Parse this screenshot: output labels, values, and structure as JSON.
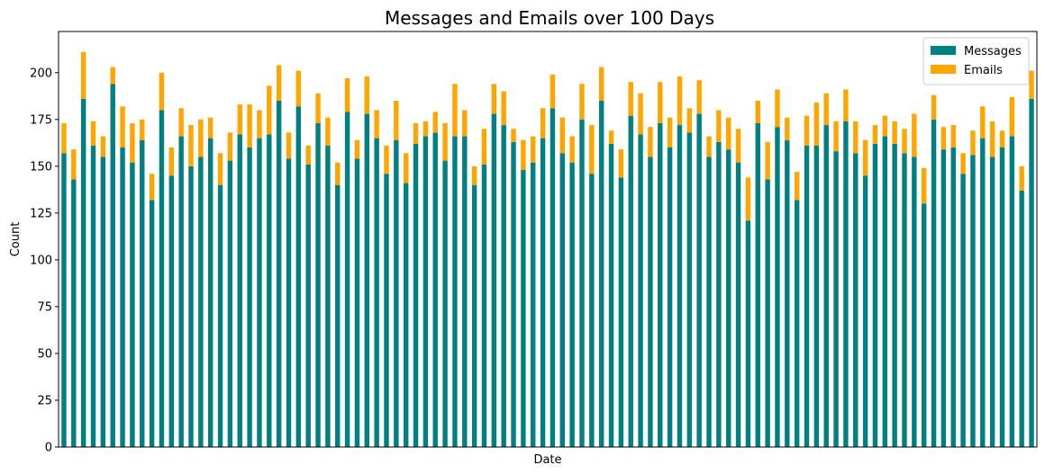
{
  "chart_data": {
    "type": "bar",
    "stacked": true,
    "title": "Messages and Emails over 100 Days",
    "xlabel": "Date",
    "ylabel": "Count",
    "ylim": [
      0,
      222
    ],
    "yticks": [
      0,
      25,
      50,
      75,
      100,
      125,
      150,
      175,
      200
    ],
    "grid": false,
    "legend_position": "top-right",
    "x_tick_labels_visible": false,
    "series": [
      {
        "name": "Messages",
        "color": "#008080",
        "values": [
          157,
          143,
          186,
          161,
          155,
          194,
          160,
          152,
          164,
          132,
          180,
          145,
          166,
          150,
          155,
          165,
          140,
          153,
          167,
          160,
          165,
          167,
          185,
          154,
          182,
          151,
          173,
          161,
          140,
          179,
          154,
          178,
          165,
          146,
          164,
          141,
          162,
          166,
          168,
          153,
          166,
          166,
          140,
          151,
          178,
          172,
          163,
          148,
          152,
          165,
          181,
          157,
          152,
          175,
          146,
          185,
          162,
          144,
          177,
          167,
          155,
          173,
          160,
          172,
          168,
          178,
          155,
          163,
          159,
          152,
          121,
          173,
          143,
          171,
          164,
          132,
          161,
          161,
          172,
          158,
          174,
          157,
          145,
          162,
          166,
          162,
          157,
          155,
          130,
          175,
          159,
          160,
          146,
          156,
          165,
          155,
          160,
          166,
          137,
          186
        ]
      },
      {
        "name": "Emails",
        "color": "#ffa500",
        "values": [
          16,
          16,
          25,
          13,
          11,
          9,
          22,
          21,
          11,
          14,
          20,
          15,
          15,
          22,
          20,
          11,
          17,
          15,
          16,
          23,
          15,
          26,
          19,
          14,
          19,
          10,
          16,
          15,
          12,
          18,
          10,
          20,
          15,
          15,
          21,
          16,
          11,
          8,
          11,
          20,
          28,
          14,
          10,
          19,
          16,
          18,
          7,
          16,
          14,
          16,
          18,
          19,
          14,
          19,
          26,
          18,
          7,
          15,
          18,
          22,
          16,
          22,
          16,
          26,
          13,
          18,
          11,
          17,
          17,
          18,
          23,
          12,
          20,
          20,
          12,
          15,
          16,
          23,
          17,
          16,
          17,
          17,
          19,
          10,
          11,
          12,
          13,
          23,
          19,
          13,
          12,
          12,
          11,
          13,
          17,
          19,
          9,
          21,
          13,
          15
        ]
      }
    ]
  }
}
